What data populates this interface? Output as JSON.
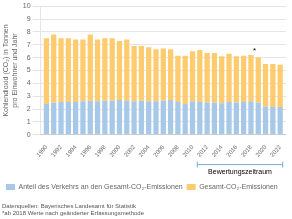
{
  "chart_data": {
    "type": "bar",
    "stacked": true,
    "x": [
      1990,
      1991,
      1992,
      1993,
      1994,
      1995,
      1996,
      1997,
      1998,
      1999,
      2000,
      2001,
      2002,
      2003,
      2004,
      2005,
      2006,
      2007,
      2008,
      2009,
      2010,
      2011,
      2012,
      2013,
      2014,
      2015,
      2016,
      2017,
      2018,
      2019,
      2020,
      2021,
      2022
    ],
    "series": [
      {
        "name": "Anteil des Verkehrs an den Gesamt-CO₂-Emissionen",
        "color": "#A8C8E8",
        "values": [
          2.4,
          2.5,
          2.55,
          2.55,
          2.55,
          2.6,
          2.65,
          2.6,
          2.65,
          2.65,
          2.7,
          2.65,
          2.6,
          2.65,
          2.6,
          2.6,
          2.65,
          2.7,
          2.55,
          2.4,
          2.6,
          2.55,
          2.5,
          2.5,
          2.45,
          2.55,
          2.5,
          2.55,
          2.6,
          2.5,
          2.2,
          2.15,
          2.15
        ]
      },
      {
        "name": "Gesamt-CO₂-Emissionen",
        "color": "#FECB6E",
        "values": [
          5.1,
          5.3,
          4.95,
          4.95,
          4.85,
          4.8,
          5.15,
          4.8,
          4.85,
          4.85,
          4.6,
          4.75,
          4.3,
          4.25,
          4.2,
          4.05,
          4.05,
          3.95,
          3.6,
          3.75,
          3.9,
          4.05,
          3.85,
          3.85,
          3.65,
          3.75,
          3.6,
          3.6,
          3.6,
          3.5,
          3.3,
          3.35,
          3.3
        ]
      }
    ],
    "xlim": [
      1989.2,
      2022.8
    ],
    "xticks": [
      1990,
      1992,
      1994,
      1996,
      1998,
      2000,
      2002,
      2004,
      2006,
      2008,
      2010,
      2012,
      2014,
      2016,
      2018,
      2020,
      2022
    ],
    "ylim": [
      0,
      10
    ],
    "yticks": [
      0,
      1,
      2,
      3,
      4,
      5,
      6,
      7,
      8,
      9,
      10
    ],
    "ylabel": "Kohlendioxid (CO₂) in Tonnen pro Einwohner und Jahr",
    "grid": "y",
    "legend": "lower left",
    "annotations": [
      {
        "text": "*",
        "x": 2018,
        "y": 6.35
      },
      {
        "text": "Bewertungszeitraum",
        "x": [
          2011,
          2022
        ]
      },
      {
        "text": "Datenquellen: Bayerisches Landesamt für Statistik"
      },
      {
        "text": "*ab 2018 Werte nach geänderter Erfassungsmethode"
      }
    ]
  }
}
